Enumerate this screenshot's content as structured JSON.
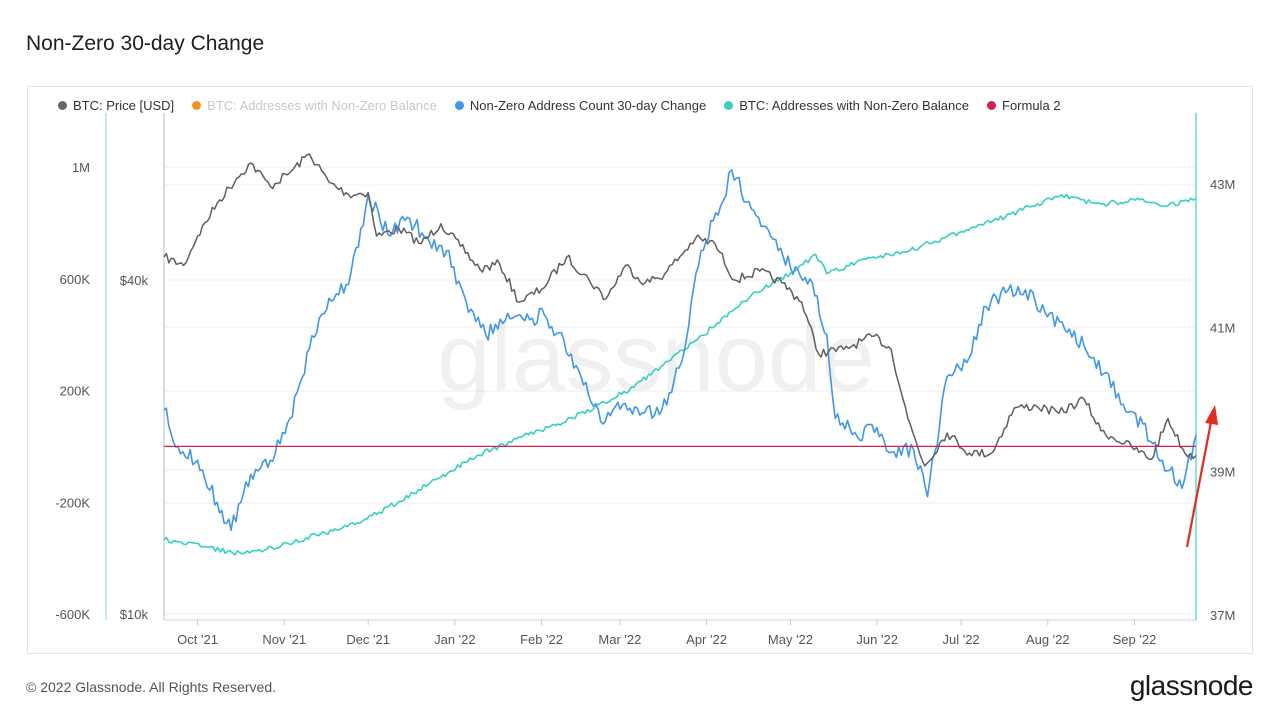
{
  "page": {
    "title": "Non-Zero 30-day Change",
    "copyright": "© 2022 Glassnode. All Rights Reserved.",
    "logo_text": "glassnode",
    "watermark": "glassnode"
  },
  "legend": [
    {
      "label": "BTC: Price [USD]",
      "color": "#666666",
      "enabled": true
    },
    {
      "label": "BTC: Addresses with Non-Zero Balance",
      "color": "#f7931a",
      "enabled": false
    },
    {
      "label": "Non-Zero Address Count 30-day Change",
      "color": "#3d97ee",
      "enabled": true
    },
    {
      "label": "BTC: Addresses with Non-Zero Balance",
      "color": "#35cfc6",
      "enabled": true
    },
    {
      "label": "Formula 2",
      "color": "#d6204e",
      "enabled": true
    }
  ],
  "colors": {
    "price": "#5e5e5e",
    "change": "#3d97ee",
    "nonzero": "#35cfc6",
    "formula": "#d6204e",
    "arrow": "#e8291d",
    "grid": "#ececec"
  },
  "chart_data": {
    "type": "line",
    "x_ticks": [
      "Oct '21",
      "Nov '21",
      "Dec '21",
      "Jan '22",
      "Feb '22",
      "Mar '22",
      "Apr '22",
      "May '22",
      "Jun '22",
      "Jul '22",
      "Aug '22",
      "Sep '22"
    ],
    "x_range": [
      "2021-09-19",
      "2022-09-23"
    ],
    "y_axes": {
      "change": {
        "ticks": [
          "1M",
          "600K",
          "200K",
          "-200K",
          "-600K"
        ],
        "range": [
          -600000,
          1000000
        ]
      },
      "price": {
        "ticks": [
          "$40k",
          "$10k"
        ],
        "scale": "log",
        "range": [
          10000,
          40000
        ]
      },
      "nonzero": {
        "ticks": [
          "43M",
          "41M",
          "39M",
          "37M"
        ],
        "range": [
          37000000,
          43000000
        ]
      }
    },
    "series": [
      {
        "name": "BTC: Price [USD]",
        "axis": "price",
        "points": [
          [
            "2021-09-19",
            44000
          ],
          [
            "2021-09-26",
            42500
          ],
          [
            "2021-10-01",
            48000
          ],
          [
            "2021-10-08",
            55000
          ],
          [
            "2021-10-15",
            61000
          ],
          [
            "2021-10-20",
            65000
          ],
          [
            "2021-10-27",
            59000
          ],
          [
            "2021-11-03",
            62500
          ],
          [
            "2021-11-10",
            67500
          ],
          [
            "2021-11-17",
            60000
          ],
          [
            "2021-11-24",
            57000
          ],
          [
            "2021-12-01",
            57500
          ],
          [
            "2021-12-04",
            48000
          ],
          [
            "2021-12-12",
            49500
          ],
          [
            "2021-12-20",
            46500
          ],
          [
            "2021-12-27",
            50500
          ],
          [
            "2022-01-03",
            46000
          ],
          [
            "2022-01-10",
            41800
          ],
          [
            "2022-01-17",
            42800
          ],
          [
            "2022-01-24",
            36500
          ],
          [
            "2022-02-01",
            38500
          ],
          [
            "2022-02-10",
            44000
          ],
          [
            "2022-02-18",
            40000
          ],
          [
            "2022-02-24",
            37000
          ],
          [
            "2022-03-03",
            42500
          ],
          [
            "2022-03-10",
            39500
          ],
          [
            "2022-03-17",
            41000
          ],
          [
            "2022-03-28",
            47500
          ],
          [
            "2022-04-04",
            46500
          ],
          [
            "2022-04-11",
            40000
          ],
          [
            "2022-04-20",
            41500
          ],
          [
            "2022-04-28",
            39500
          ],
          [
            "2022-05-05",
            36500
          ],
          [
            "2022-05-11",
            29500
          ],
          [
            "2022-05-20",
            30000
          ],
          [
            "2022-05-31",
            31700
          ],
          [
            "2022-06-06",
            30000
          ],
          [
            "2022-06-12",
            22500
          ],
          [
            "2022-06-18",
            18500
          ],
          [
            "2022-06-26",
            21200
          ],
          [
            "2022-07-04",
            19500
          ],
          [
            "2022-07-12",
            19500
          ],
          [
            "2022-07-20",
            23500
          ],
          [
            "2022-07-28",
            23700
          ],
          [
            "2022-08-05",
            23000
          ],
          [
            "2022-08-14",
            24400
          ],
          [
            "2022-08-20",
            21400
          ],
          [
            "2022-08-31",
            20000
          ],
          [
            "2022-09-07",
            19000
          ],
          [
            "2022-09-13",
            22500
          ],
          [
            "2022-09-19",
            19500
          ],
          [
            "2022-09-23",
            19300
          ]
        ]
      },
      {
        "name": "Non-Zero Address Count 30-day Change",
        "axis": "change",
        "points": [
          [
            "2021-09-19",
            130000
          ],
          [
            "2021-09-24",
            0
          ],
          [
            "2021-10-01",
            -50000
          ],
          [
            "2021-10-08",
            -200000
          ],
          [
            "2021-10-13",
            -300000
          ],
          [
            "2021-10-20",
            -100000
          ],
          [
            "2021-10-27",
            -50000
          ],
          [
            "2021-11-03",
            100000
          ],
          [
            "2021-11-10",
            350000
          ],
          [
            "2021-11-17",
            530000
          ],
          [
            "2021-11-24",
            580000
          ],
          [
            "2021-12-01",
            900000
          ],
          [
            "2021-12-08",
            760000
          ],
          [
            "2021-12-15",
            820000
          ],
          [
            "2021-12-22",
            750000
          ],
          [
            "2021-12-29",
            700000
          ],
          [
            "2022-01-05",
            520000
          ],
          [
            "2022-01-12",
            400000
          ],
          [
            "2022-01-19",
            450000
          ],
          [
            "2022-01-26",
            450000
          ],
          [
            "2022-02-02",
            470000
          ],
          [
            "2022-02-09",
            380000
          ],
          [
            "2022-02-16",
            220000
          ],
          [
            "2022-02-23",
            80000
          ],
          [
            "2022-03-02",
            150000
          ],
          [
            "2022-03-09",
            120000
          ],
          [
            "2022-03-16",
            130000
          ],
          [
            "2022-03-23",
            300000
          ],
          [
            "2022-03-30",
            700000
          ],
          [
            "2022-04-06",
            860000
          ],
          [
            "2022-04-10",
            990000
          ],
          [
            "2022-04-17",
            850000
          ],
          [
            "2022-04-24",
            750000
          ],
          [
            "2022-05-01",
            640000
          ],
          [
            "2022-05-08",
            600000
          ],
          [
            "2022-05-14",
            400000
          ],
          [
            "2022-05-17",
            100000
          ],
          [
            "2022-05-24",
            50000
          ],
          [
            "2022-05-31",
            50000
          ],
          [
            "2022-06-07",
            -20000
          ],
          [
            "2022-06-14",
            -10000
          ],
          [
            "2022-06-19",
            -180000
          ],
          [
            "2022-06-26",
            250000
          ],
          [
            "2022-07-03",
            300000
          ],
          [
            "2022-07-10",
            500000
          ],
          [
            "2022-07-17",
            550000
          ],
          [
            "2022-07-24",
            560000
          ],
          [
            "2022-07-31",
            480000
          ],
          [
            "2022-08-07",
            420000
          ],
          [
            "2022-08-14",
            360000
          ],
          [
            "2022-08-21",
            260000
          ],
          [
            "2022-08-28",
            150000
          ],
          [
            "2022-09-04",
            80000
          ],
          [
            "2022-09-11",
            -50000
          ],
          [
            "2022-09-18",
            -150000
          ],
          [
            "2022-09-23",
            40000
          ]
        ]
      },
      {
        "name": "BTC: Addresses with Non-Zero Balance",
        "axis": "nonzero",
        "points": [
          [
            "2021-09-19",
            38050000
          ],
          [
            "2021-10-03",
            37950000
          ],
          [
            "2021-10-17",
            37850000
          ],
          [
            "2021-10-31",
            37970000
          ],
          [
            "2021-11-14",
            38130000
          ],
          [
            "2021-11-28",
            38280000
          ],
          [
            "2021-12-12",
            38580000
          ],
          [
            "2021-12-26",
            38900000
          ],
          [
            "2022-01-09",
            39220000
          ],
          [
            "2022-01-23",
            39450000
          ],
          [
            "2022-02-06",
            39640000
          ],
          [
            "2022-02-20",
            39890000
          ],
          [
            "2022-03-06",
            40170000
          ],
          [
            "2022-03-20",
            40600000
          ],
          [
            "2022-04-03",
            41000000
          ],
          [
            "2022-04-17",
            41450000
          ],
          [
            "2022-05-01",
            41760000
          ],
          [
            "2022-05-10",
            42020000
          ],
          [
            "2022-05-14",
            41750000
          ],
          [
            "2022-05-28",
            41950000
          ],
          [
            "2022-06-11",
            42050000
          ],
          [
            "2022-06-25",
            42250000
          ],
          [
            "2022-07-09",
            42430000
          ],
          [
            "2022-07-23",
            42640000
          ],
          [
            "2022-08-06",
            42850000
          ],
          [
            "2022-08-13",
            42780000
          ],
          [
            "2022-08-20",
            42720000
          ],
          [
            "2022-09-03",
            42780000
          ],
          [
            "2022-09-13",
            42700000
          ],
          [
            "2022-09-23",
            42800000
          ]
        ]
      },
      {
        "name": "Formula 2",
        "axis": "change",
        "points": [
          [
            "2021-09-19",
            0
          ],
          [
            "2022-09-23",
            0
          ]
        ]
      }
    ],
    "grid": true,
    "legend_position": "top-left"
  }
}
